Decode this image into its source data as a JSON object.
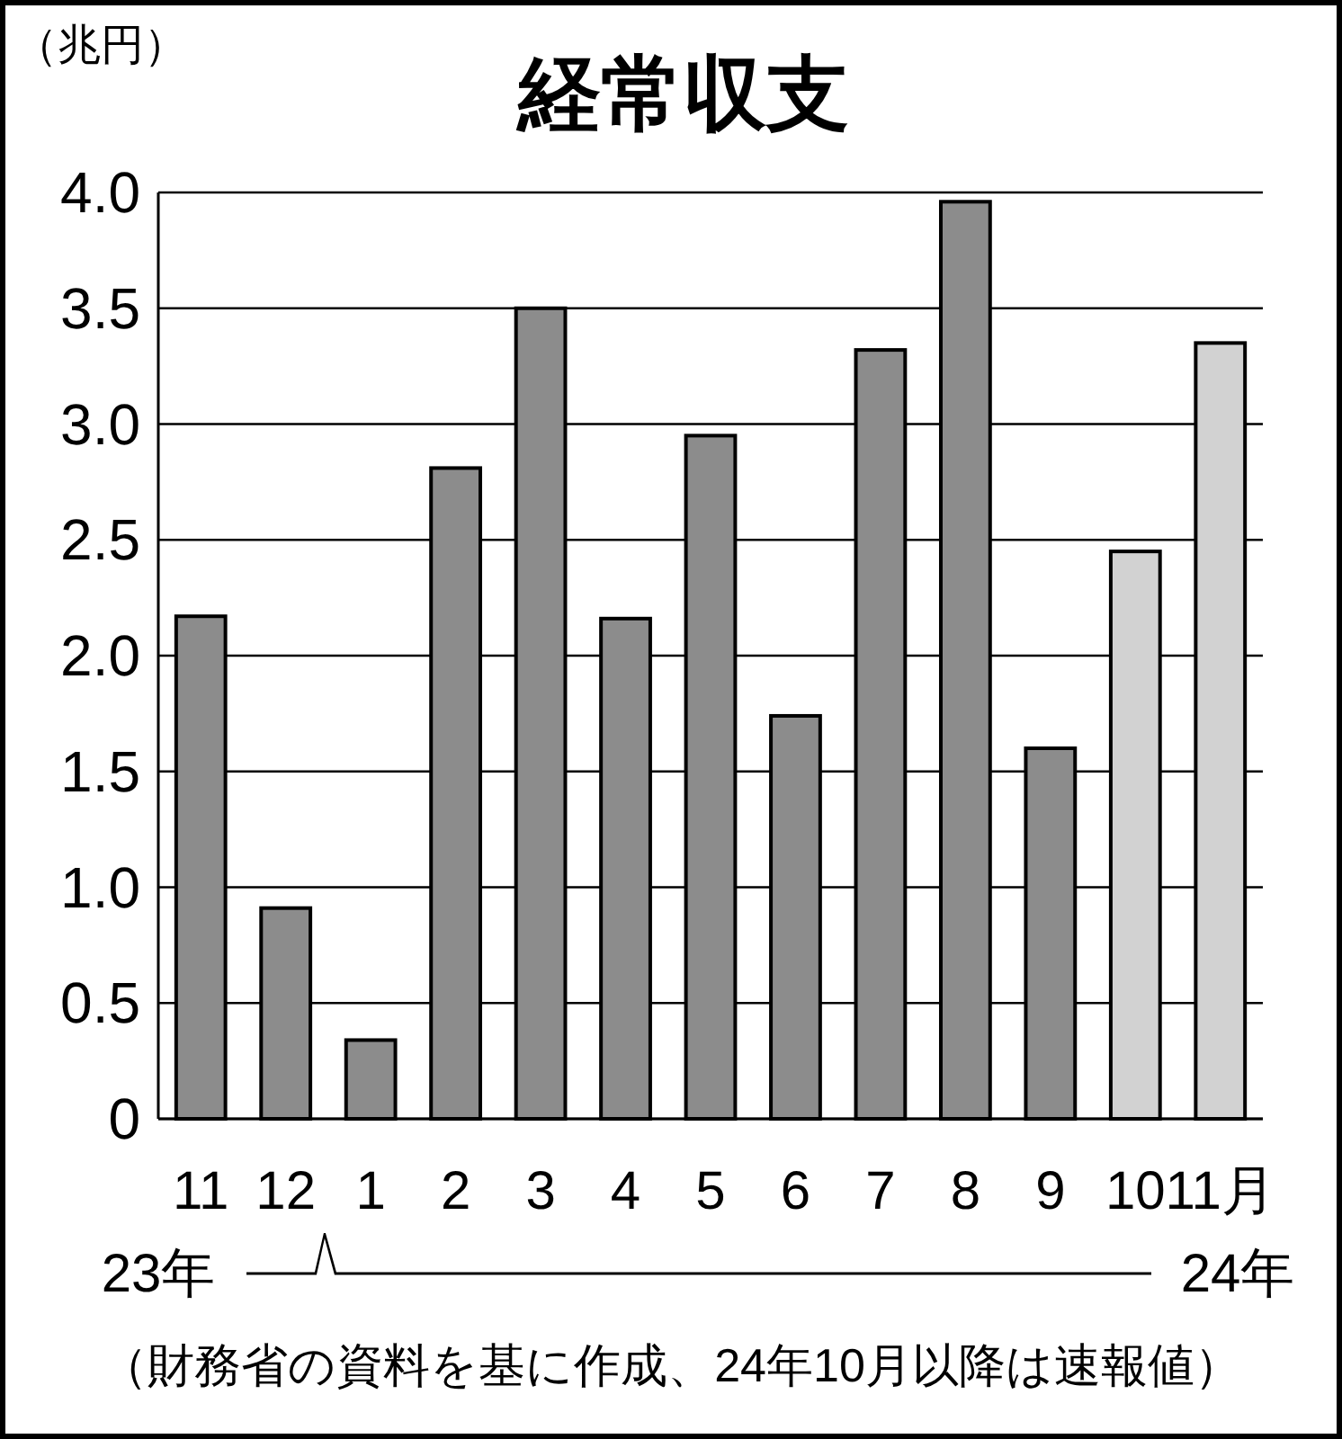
{
  "chart_data": {
    "type": "bar",
    "title": "経常収支",
    "ylabel": "（兆円）",
    "categories": [
      "11",
      "12",
      "1",
      "2",
      "3",
      "4",
      "5",
      "6",
      "7",
      "8",
      "9",
      "10",
      "11月"
    ],
    "values": [
      2.17,
      0.91,
      0.34,
      2.81,
      3.5,
      2.16,
      2.95,
      1.74,
      3.32,
      3.96,
      1.6,
      2.45,
      3.35
    ],
    "colors": [
      "#8c8c8c",
      "#8c8c8c",
      "#8c8c8c",
      "#8c8c8c",
      "#8c8c8c",
      "#8c8c8c",
      "#8c8c8c",
      "#8c8c8c",
      "#8c8c8c",
      "#8c8c8c",
      "#8c8c8c",
      "#d2d2d2",
      "#d2d2d2"
    ],
    "ylim": [
      0,
      4
    ],
    "yticks": [
      {
        "value": 0,
        "label": "0"
      },
      {
        "value": 0.5,
        "label": "0.5"
      },
      {
        "value": 1,
        "label": "1.0"
      },
      {
        "value": 1.5,
        "label": "1.5"
      },
      {
        "value": 2,
        "label": "2.0"
      },
      {
        "value": 2.5,
        "label": "2.5"
      },
      {
        "value": 3,
        "label": "3.0"
      },
      {
        "value": 3.5,
        "label": "3.5"
      },
      {
        "value": 4,
        "label": "4.0"
      }
    ],
    "grid": "y",
    "annotations": [
      "23年",
      "24年",
      "（財務省の資料を基に作成、24年10月以降は速報値）"
    ]
  }
}
